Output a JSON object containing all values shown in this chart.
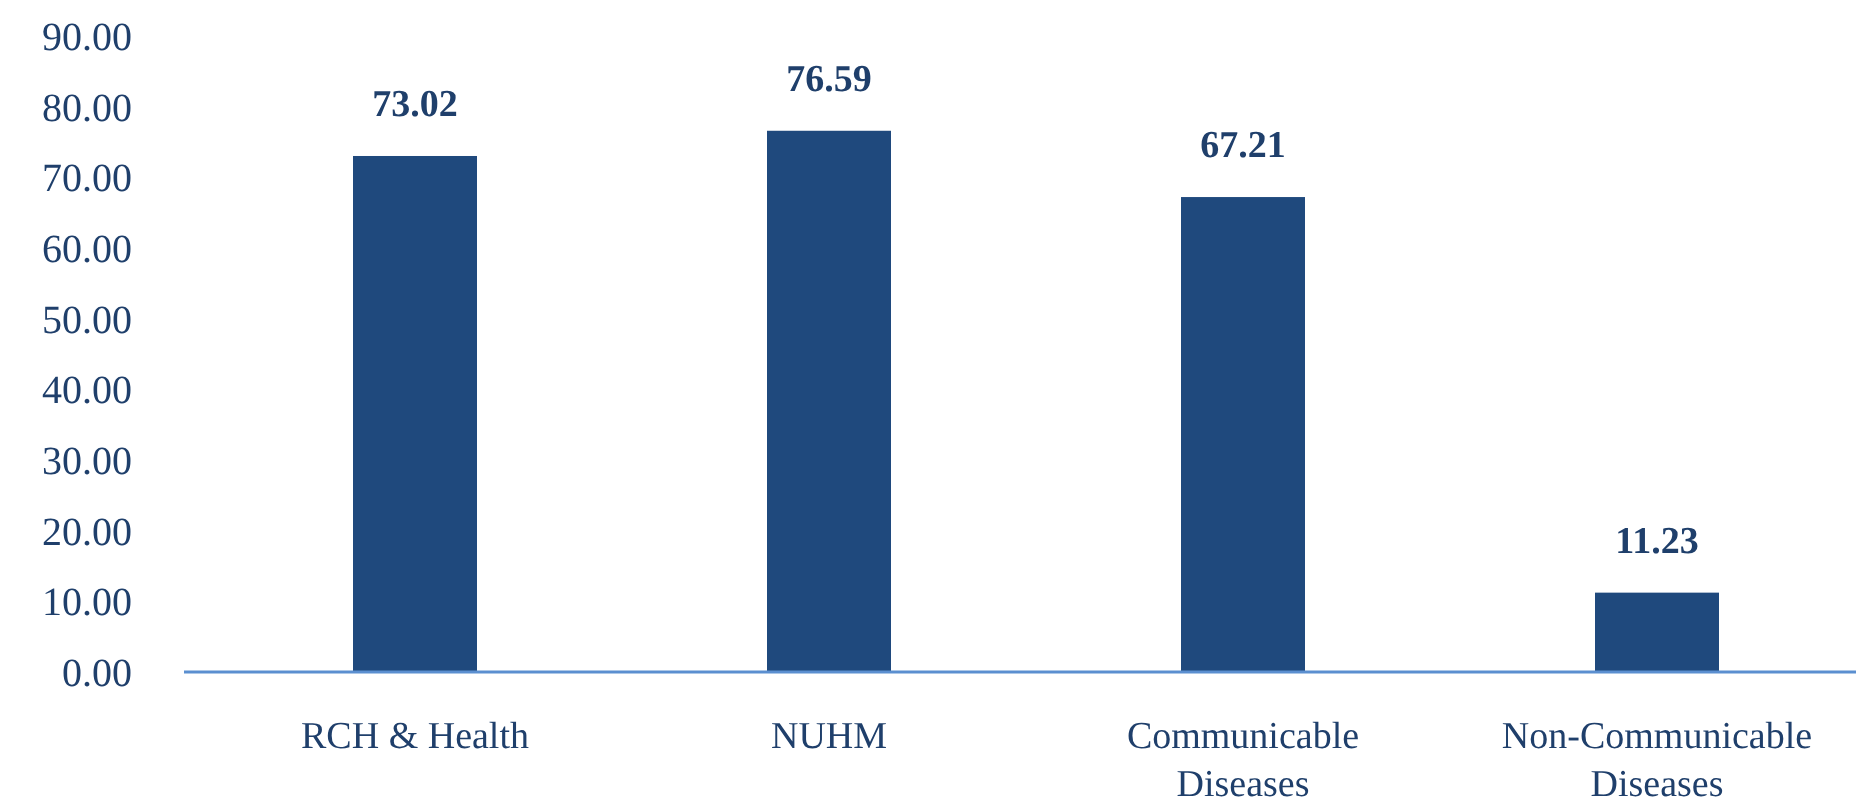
{
  "chart_data": {
    "type": "bar",
    "categories": [
      "RCH & Health",
      "NUHM",
      "Communicable Diseases",
      "Non-Communicable Diseases"
    ],
    "values": [
      73.02,
      76.59,
      67.21,
      11.23
    ],
    "color": "#1f497d",
    "data_labels": true,
    "grid": false,
    "ylim": [
      0,
      90
    ],
    "yticks": [
      {
        "value": 0,
        "label": "0.00"
      },
      {
        "value": 10,
        "label": "10.00"
      },
      {
        "value": 20,
        "label": "20.00"
      },
      {
        "value": 30,
        "label": "30.00"
      },
      {
        "value": 40,
        "label": "40.00"
      },
      {
        "value": 50,
        "label": "50.00"
      },
      {
        "value": 60,
        "label": "60.00"
      },
      {
        "value": 70,
        "label": "70.00"
      },
      {
        "value": 80,
        "label": "80.00"
      },
      {
        "value": 90,
        "label": "90.00"
      }
    ]
  }
}
